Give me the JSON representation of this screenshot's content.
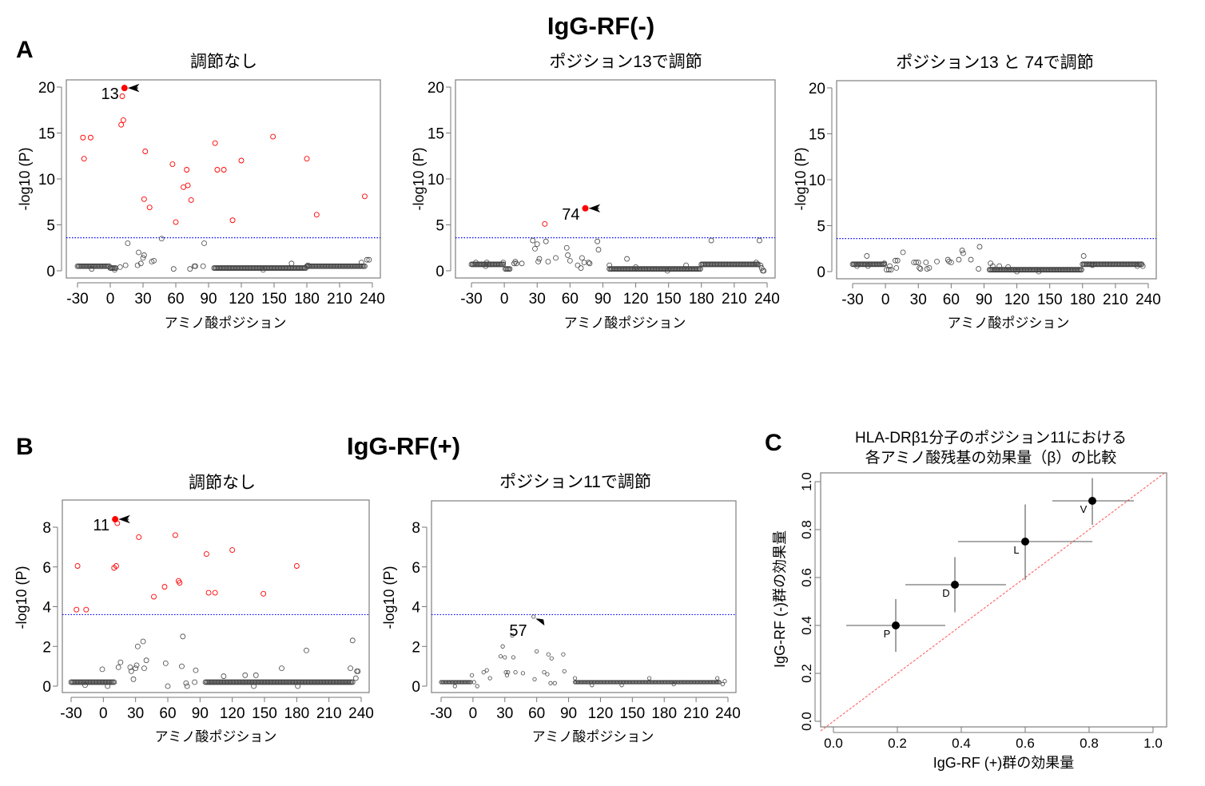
{
  "figure": {
    "group_a_title": "IgG-RF(-)",
    "group_b_title": "IgG-RF(+)",
    "panel_letters": {
      "a": "A",
      "b": "B",
      "c": "C"
    }
  },
  "chart_data": [
    {
      "id": "A1",
      "type": "scatter",
      "title": "調節なし",
      "xlabel": "アミノ酸ポジション",
      "ylabel": "-log10 (P)",
      "xlim": [
        -33,
        248
      ],
      "ylim": [
        -0.8,
        21
      ],
      "xticks": [
        -30,
        0,
        30,
        60,
        90,
        120,
        150,
        180,
        210,
        240
      ],
      "yticks": [
        0,
        5,
        10,
        15,
        20
      ],
      "threshold": 3.6,
      "threshold_color": "#0000ff",
      "significant_color": "#ff0000",
      "highlight": {
        "x": 13,
        "y": 19.9,
        "label": "13",
        "filled": true,
        "arrow": "left"
      },
      "significant_points": [
        [
          -25,
          14.5
        ],
        [
          -24,
          12.2
        ],
        [
          -18,
          14.5
        ],
        [
          11,
          19
        ],
        [
          10,
          15.9
        ],
        [
          12,
          16.4
        ],
        [
          32,
          13
        ],
        [
          31,
          7.8
        ],
        [
          36,
          6.9
        ],
        [
          57,
          11.6
        ],
        [
          60,
          5.3
        ],
        [
          67,
          9.1
        ],
        [
          70,
          11
        ],
        [
          71,
          9.3
        ],
        [
          74,
          7.7
        ],
        [
          96,
          13.9
        ],
        [
          98,
          11
        ],
        [
          104,
          11
        ],
        [
          112,
          5.5
        ],
        [
          120,
          12
        ],
        [
          149,
          14.6
        ],
        [
          180,
          12.2
        ],
        [
          189,
          6.1
        ],
        [
          233,
          8.1
        ]
      ],
      "baseline_runs": [
        [
          -30,
          -1,
          0.5
        ],
        [
          0,
          5,
          0.3
        ],
        [
          95,
          179,
          0.3
        ],
        [
          180,
          232,
          0.5
        ]
      ],
      "other_points": [
        [
          -17,
          0.2
        ],
        [
          4,
          0.1
        ],
        [
          9,
          0.4
        ],
        [
          14,
          0.6
        ],
        [
          16,
          3.0
        ],
        [
          25,
          0.6
        ],
        [
          26,
          2.0
        ],
        [
          28,
          0.8
        ],
        [
          30,
          1.4
        ],
        [
          31,
          1.7
        ],
        [
          38,
          1.0
        ],
        [
          40,
          1.1
        ],
        [
          47,
          3.5
        ],
        [
          58,
          0.2
        ],
        [
          73,
          0.2
        ],
        [
          77,
          0.5
        ],
        [
          78,
          0.5
        ],
        [
          85,
          0.5
        ],
        [
          86,
          3.0
        ],
        [
          140,
          0.1
        ],
        [
          166,
          0.8
        ],
        [
          181,
          0.6
        ],
        [
          230,
          0.9
        ],
        [
          233,
          0.5
        ],
        [
          235,
          1.2
        ],
        [
          237,
          1.2
        ]
      ]
    },
    {
      "id": "A2",
      "type": "scatter",
      "title": "ポジション13で調節",
      "xlabel": "アミノ酸ポジション",
      "ylabel": "-log10 (P)",
      "xlim": [
        -33,
        248
      ],
      "ylim": [
        -0.8,
        21
      ],
      "xticks": [
        -30,
        0,
        30,
        60,
        90,
        120,
        150,
        180,
        210,
        240
      ],
      "yticks": [
        0,
        5,
        10,
        15,
        20
      ],
      "threshold": 3.6,
      "threshold_color": "#0000ff",
      "significant_color": "#ff0000",
      "highlight": {
        "x": 74,
        "y": 6.8,
        "label": "74",
        "filled": true,
        "arrow": "left"
      },
      "significant_points": [
        [
          37,
          5.1
        ]
      ],
      "baseline_runs": [
        [
          -30,
          -1,
          0.7
        ],
        [
          1,
          5,
          0.2
        ],
        [
          96,
          179,
          0.2
        ],
        [
          180,
          232,
          0.7
        ]
      ],
      "other_points": [
        [
          -26,
          0.9
        ],
        [
          -16,
          0.9
        ],
        [
          -17,
          0.5
        ],
        [
          -1,
          0.9
        ],
        [
          9,
          0.8
        ],
        [
          10,
          1.0
        ],
        [
          11,
          0.8
        ],
        [
          16,
          0.8
        ],
        [
          26,
          3.3
        ],
        [
          28,
          2.4
        ],
        [
          30,
          2.9
        ],
        [
          31,
          1.0
        ],
        [
          32,
          1.3
        ],
        [
          38,
          3.2
        ],
        [
          40,
          1.0
        ],
        [
          47,
          1.4
        ],
        [
          57,
          2.5
        ],
        [
          58,
          1.7
        ],
        [
          60,
          1.1
        ],
        [
          67,
          0.6
        ],
        [
          70,
          0.3
        ],
        [
          71,
          1.4
        ],
        [
          73,
          0.9
        ],
        [
          77,
          0.9
        ],
        [
          78,
          0.8
        ],
        [
          85,
          3.2
        ],
        [
          86,
          2.3
        ],
        [
          96,
          0.6
        ],
        [
          112,
          1.3
        ],
        [
          120,
          0.4
        ],
        [
          149,
          0.0
        ],
        [
          166,
          0.6
        ],
        [
          189,
          3.3
        ],
        [
          230,
          0.9
        ],
        [
          233,
          3.3
        ],
        [
          234,
          0.6
        ],
        [
          235,
          0.3
        ],
        [
          236,
          0.0
        ],
        [
          237,
          0.0
        ]
      ]
    },
    {
      "id": "A3",
      "type": "scatter",
      "title": "ポジション13 と 74で調節",
      "xlabel": "アミノ酸ポジション",
      "ylabel": "-log10 (P)",
      "xlim": [
        -33,
        248
      ],
      "ylim": [
        -0.8,
        21
      ],
      "xticks": [
        -30,
        0,
        30,
        60,
        90,
        120,
        150,
        180,
        210,
        240
      ],
      "yticks": [
        0,
        5,
        10,
        15,
        20
      ],
      "threshold": 3.6,
      "threshold_color": "#0000ff",
      "significant_color": "#ff0000",
      "significant_points": [],
      "baseline_runs": [
        [
          -30,
          -1,
          0.8
        ],
        [
          95,
          179,
          0.2
        ],
        [
          180,
          234,
          0.8
        ]
      ],
      "other_points": [
        [
          -26,
          0.6
        ],
        [
          -17,
          1.7
        ],
        [
          -16,
          0.6
        ],
        [
          -1,
          0.9
        ],
        [
          1,
          0.2
        ],
        [
          3,
          0.2
        ],
        [
          4,
          0.6
        ],
        [
          5,
          0.2
        ],
        [
          9,
          1.2
        ],
        [
          10,
          0.4
        ],
        [
          11,
          1.2
        ],
        [
          16,
          2.1
        ],
        [
          26,
          1.0
        ],
        [
          28,
          1.0
        ],
        [
          30,
          1.0
        ],
        [
          31,
          0.4
        ],
        [
          32,
          0.3
        ],
        [
          37,
          1.0
        ],
        [
          38,
          0.3
        ],
        [
          40,
          0.4
        ],
        [
          47,
          1.1
        ],
        [
          57,
          1.3
        ],
        [
          58,
          1.1
        ],
        [
          60,
          1.0
        ],
        [
          67,
          1.3
        ],
        [
          70,
          2.3
        ],
        [
          71,
          2.0
        ],
        [
          78,
          1.3
        ],
        [
          85,
          0.3
        ],
        [
          86,
          2.7
        ],
        [
          96,
          0.9
        ],
        [
          98,
          0.6
        ],
        [
          104,
          0.6
        ],
        [
          112,
          0.5
        ],
        [
          120,
          0.0
        ],
        [
          140,
          0.0
        ],
        [
          181,
          1.7
        ],
        [
          189,
          0.7
        ],
        [
          230,
          0.6
        ],
        [
          235,
          0.6
        ]
      ]
    },
    {
      "id": "B1",
      "type": "scatter",
      "title": "調節なし",
      "xlabel": "アミノ酸ポジション",
      "ylabel": "-log10 (P)",
      "xlim": [
        -33,
        248
      ],
      "ylim": [
        -0.35,
        9.3
      ],
      "xticks": [
        -30,
        0,
        30,
        60,
        90,
        120,
        150,
        180,
        210,
        240
      ],
      "yticks": [
        0,
        2,
        4,
        6,
        8
      ],
      "threshold": 3.6,
      "threshold_color": "#0000ff",
      "significant_color": "#ff0000",
      "highlight": {
        "x": 11,
        "y": 8.4,
        "label": "11",
        "filled": true,
        "arrow": "left"
      },
      "significant_points": [
        [
          -25,
          3.85
        ],
        [
          -24,
          6.05
        ],
        [
          -16,
          3.85
        ],
        [
          10,
          5.95
        ],
        [
          12,
          6.05
        ],
        [
          13,
          8.2
        ],
        [
          33,
          7.5
        ],
        [
          47,
          4.5
        ],
        [
          57,
          5.0
        ],
        [
          67,
          7.6
        ],
        [
          70,
          5.3
        ],
        [
          71,
          5.2
        ],
        [
          96,
          6.65
        ],
        [
          98,
          4.7
        ],
        [
          104,
          4.7
        ],
        [
          120,
          6.85
        ],
        [
          149,
          4.65
        ],
        [
          180,
          6.05
        ]
      ],
      "baseline_runs": [
        [
          -30,
          10,
          0.2
        ],
        [
          95,
          232,
          0.2
        ]
      ],
      "other_points": [
        [
          -17,
          0.05
        ],
        [
          -1,
          0.85
        ],
        [
          4,
          0.0
        ],
        [
          14,
          0.95
        ],
        [
          16,
          1.2
        ],
        [
          25,
          0.95
        ],
        [
          26,
          0.75
        ],
        [
          28,
          0.35
        ],
        [
          30,
          0.9
        ],
        [
          31,
          1.05
        ],
        [
          32,
          2.0
        ],
        [
          37,
          2.25
        ],
        [
          38,
          0.9
        ],
        [
          40,
          1.3
        ],
        [
          58,
          1.15
        ],
        [
          60,
          0.0
        ],
        [
          73,
          1.0
        ],
        [
          74,
          2.5
        ],
        [
          77,
          0.15
        ],
        [
          78,
          0.0
        ],
        [
          85,
          0.2
        ],
        [
          86,
          0.8
        ],
        [
          112,
          0.5
        ],
        [
          132,
          0.55
        ],
        [
          140,
          0.0
        ],
        [
          142,
          0.55
        ],
        [
          166,
          0.9
        ],
        [
          181,
          0.0
        ],
        [
          189,
          1.8
        ],
        [
          230,
          0.9
        ],
        [
          232,
          2.3
        ],
        [
          235,
          0.4
        ],
        [
          236,
          0.75
        ],
        [
          237,
          0.75
        ]
      ]
    },
    {
      "id": "B2",
      "type": "scatter",
      "title": "ポジション11で調節",
      "xlabel": "アミノ酸ポジション",
      "ylabel": "-log10 (P)",
      "xlim": [
        -33,
        248
      ],
      "ylim": [
        -0.35,
        9.3
      ],
      "xticks": [
        -30,
        0,
        30,
        60,
        90,
        120,
        150,
        180,
        210,
        240
      ],
      "yticks": [
        0,
        2,
        4,
        6,
        8
      ],
      "threshold": 3.6,
      "threshold_color": "#0000ff",
      "significant_color": "#ff0000",
      "highlight": {
        "x": 57,
        "y": 3.5,
        "label": "57",
        "filled": false,
        "arrow": "upleft"
      },
      "significant_points": [],
      "baseline_runs": [
        [
          -30,
          -2,
          0.2
        ],
        [
          96,
          232,
          0.2
        ]
      ],
      "other_points": [
        [
          -17,
          0.0
        ],
        [
          -1,
          0.55
        ],
        [
          1,
          0.2
        ],
        [
          4,
          0.0
        ],
        [
          10,
          0.7
        ],
        [
          13,
          0.8
        ],
        [
          16,
          0.4
        ],
        [
          26,
          1.5
        ],
        [
          28,
          2.0
        ],
        [
          30,
          1.45
        ],
        [
          31,
          0.7
        ],
        [
          32,
          0.55
        ],
        [
          33,
          0.7
        ],
        [
          37,
          2.55
        ],
        [
          38,
          1.45
        ],
        [
          40,
          0.7
        ],
        [
          47,
          0.65
        ],
        [
          58,
          0.35
        ],
        [
          60,
          1.75
        ],
        [
          67,
          0.7
        ],
        [
          70,
          0.6
        ],
        [
          71,
          1.6
        ],
        [
          73,
          0.15
        ],
        [
          74,
          1.4
        ],
        [
          77,
          0.15
        ],
        [
          85,
          1.6
        ],
        [
          86,
          0.75
        ],
        [
          96,
          0.4
        ],
        [
          112,
          0.05
        ],
        [
          140,
          0.05
        ],
        [
          166,
          0.4
        ],
        [
          189,
          0.1
        ],
        [
          230,
          0.4
        ],
        [
          235,
          0.1
        ],
        [
          237,
          0.25
        ]
      ]
    },
    {
      "id": "C",
      "type": "scatter",
      "title_lines": [
        "HLA-DRβ1分子のポジション11における",
        "各アミノ酸残基の効果量（β）の比較"
      ],
      "xlabel": "IgG-RF (+)群の効果量",
      "ylabel": "IgG-RF (-)群の効果量",
      "xlim": [
        -0.04,
        1.04
      ],
      "ylim": [
        -0.04,
        1.04
      ],
      "xticks": [
        "0.0",
        "0.2",
        "0.4",
        "0.6",
        "0.8",
        "1.0"
      ],
      "yticks": [
        "0.0",
        "0.2",
        "0.4",
        "0.6",
        "0.8",
        "1.0"
      ],
      "reference_line": {
        "slope": 1,
        "intercept": 0,
        "color": "#ff6666",
        "style": "dashed"
      },
      "points": [
        {
          "label": "P",
          "x": 0.195,
          "y": 0.4,
          "x_ci": [
            0.04,
            0.35
          ],
          "y_ci": [
            0.29,
            0.51
          ]
        },
        {
          "label": "D",
          "x": 0.38,
          "y": 0.57,
          "x_ci": [
            0.225,
            0.54
          ],
          "y_ci": [
            0.455,
            0.685
          ]
        },
        {
          "label": "L",
          "x": 0.6,
          "y": 0.75,
          "x_ci": [
            0.39,
            0.81
          ],
          "y_ci": [
            0.59,
            0.905
          ]
        },
        {
          "label": "V",
          "x": 0.81,
          "y": 0.92,
          "x_ci": [
            0.685,
            0.94
          ],
          "y_ci": [
            0.82,
            1.015
          ]
        }
      ]
    }
  ]
}
